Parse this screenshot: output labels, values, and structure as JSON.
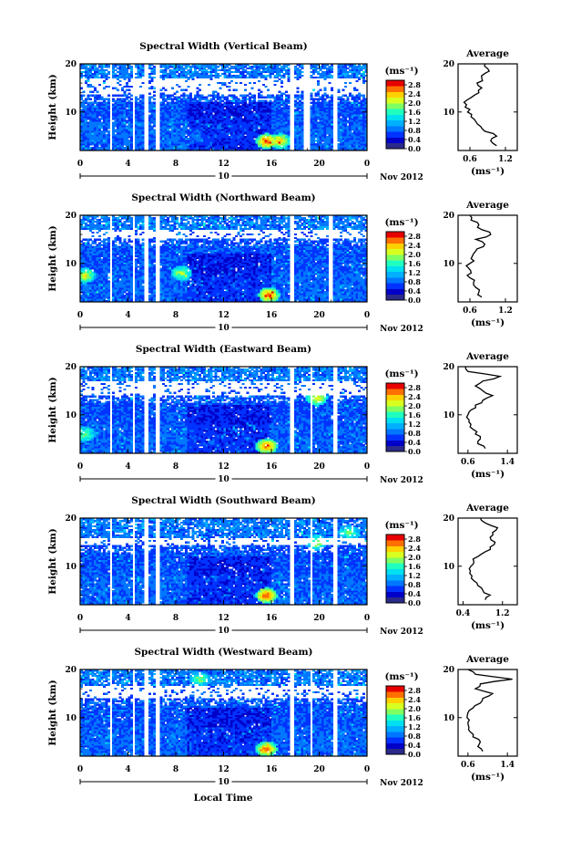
{
  "figure": {
    "xlabel": "Local Time",
    "date_label": "Nov 2012",
    "day_label": "10",
    "ylabel": "Height (km)",
    "units_label": "(ms⁻¹)",
    "avg_title": "Average",
    "avg_units": "(ms⁻¹)"
  },
  "colors": {
    "colormap": [
      "#2a2a8a",
      "#0000c8",
      "#0033ff",
      "#0077ff",
      "#00b0ff",
      "#00e0f0",
      "#20ffc0",
      "#80ff60",
      "#d8ff20",
      "#ffd000",
      "#ff7000",
      "#e80000"
    ],
    "background": "#ffffff"
  },
  "chart_data": [
    {
      "type": "heatmap",
      "title": "Spectral Width (Vertical Beam)",
      "x_ticks": [
        "0",
        "4",
        "8",
        "12",
        "16",
        "20",
        "0"
      ],
      "y_ticks": [
        "20",
        "10"
      ],
      "xlim": [
        0,
        24
      ],
      "ylim": [
        2,
        20
      ],
      "colorbar": {
        "label": "(ms⁻¹)",
        "ticks": [
          "2.8",
          "2.4",
          "2.0",
          "1.6",
          "1.2",
          "0.8",
          "0.4",
          "0.0"
        ],
        "range": [
          0,
          3.0
        ]
      },
      "data_gaps_hours": [
        [
          2.4,
          2.7
        ],
        [
          4.3,
          4.6
        ],
        [
          5.4,
          5.7
        ],
        [
          6.2,
          6.6
        ],
        [
          17.6,
          17.9
        ],
        [
          18.7,
          19.3
        ],
        [
          21.2,
          21.5
        ]
      ],
      "noise_band_km": [
        13.6,
        17.0
      ],
      "hotspots": [
        {
          "t": 15.6,
          "h": 4,
          "v": 2.7
        },
        {
          "t": 16.7,
          "h": 4,
          "v": 2.4
        },
        {
          "t": 9.6,
          "h": 5,
          "v": 0.9
        }
      ],
      "average": {
        "title": "Average",
        "xticks": [
          "0.6",
          "1.2"
        ],
        "xlim": [
          0.4,
          1.4
        ],
        "yticks": [
          "20",
          "10"
        ],
        "height": [
          3,
          4,
          5,
          6,
          7,
          8,
          9,
          10,
          11,
          12,
          13,
          14,
          15,
          16,
          17,
          18,
          19,
          20
        ],
        "width": [
          1.05,
          0.95,
          1.05,
          0.85,
          0.78,
          0.7,
          0.62,
          0.56,
          0.52,
          0.5,
          0.62,
          0.75,
          0.8,
          0.72,
          0.8,
          0.85,
          0.9,
          0.85
        ]
      }
    },
    {
      "type": "heatmap",
      "title": "Spectral Width (Northward Beam)",
      "x_ticks": [
        "0",
        "4",
        "8",
        "12",
        "16",
        "20",
        "0"
      ],
      "y_ticks": [
        "20",
        "10"
      ],
      "xlim": [
        0,
        24
      ],
      "ylim": [
        2,
        20
      ],
      "colorbar": {
        "label": "(ms⁻¹)",
        "ticks": [
          "2.8",
          "2.4",
          "2.0",
          "1.6",
          "1.2",
          "0.8",
          "0.4",
          "0.0"
        ],
        "range": [
          0,
          3.0
        ]
      },
      "data_gaps_hours": [
        [
          2.4,
          2.7
        ],
        [
          4.3,
          4.6
        ],
        [
          5.4,
          5.7
        ],
        [
          6.2,
          6.6
        ],
        [
          17.6,
          17.9
        ],
        [
          20.8,
          21.1
        ]
      ],
      "noise_band_km": [
        15.3,
        17.0
      ],
      "hotspots": [
        {
          "t": 15.8,
          "h": 3.5,
          "v": 2.7
        },
        {
          "t": 0.4,
          "h": 7.5,
          "v": 2.2
        },
        {
          "t": 8.5,
          "h": 8,
          "v": 2.0
        }
      ],
      "average": {
        "title": "Average",
        "xticks": [
          "0.6",
          "1.2"
        ],
        "xlim": [
          0.4,
          1.4
        ],
        "yticks": [
          "20",
          "10"
        ],
        "height": [
          3,
          4,
          5,
          6,
          7,
          8,
          9,
          10,
          11,
          12,
          13,
          14,
          15,
          16,
          17,
          18,
          19,
          20
        ],
        "width": [
          0.8,
          0.75,
          0.7,
          0.66,
          0.6,
          0.62,
          0.58,
          0.6,
          0.62,
          0.66,
          0.72,
          0.85,
          0.7,
          0.95,
          0.8,
          0.75,
          0.62,
          0.6
        ]
      }
    },
    {
      "type": "heatmap",
      "title": "Spectral Width (Eastward Beam)",
      "x_ticks": [
        "0",
        "4",
        "8",
        "12",
        "16",
        "20",
        "0"
      ],
      "y_ticks": [
        "20",
        "10"
      ],
      "xlim": [
        0,
        24
      ],
      "ylim": [
        2,
        20
      ],
      "colorbar": {
        "label": "(ms⁻¹)",
        "ticks": [
          "2.8",
          "2.4",
          "2.0",
          "1.6",
          "1.2",
          "0.8",
          "0.4",
          "0.0"
        ],
        "range": [
          0,
          3.0
        ]
      },
      "data_gaps_hours": [
        [
          2.4,
          2.7
        ],
        [
          4.3,
          4.6
        ],
        [
          5.4,
          5.7
        ],
        [
          6.2,
          6.6
        ],
        [
          17.6,
          17.9
        ],
        [
          19.2,
          19.5
        ],
        [
          21.2,
          21.5
        ]
      ],
      "noise_band_km": [
        14.0,
        17.0
      ],
      "hotspots": [
        {
          "t": 15.6,
          "h": 3.5,
          "v": 2.7
        },
        {
          "t": 19.8,
          "h": 13.5,
          "v": 2.2
        },
        {
          "t": 0.4,
          "h": 6,
          "v": 1.8
        }
      ],
      "average": {
        "title": "Average",
        "xticks": [
          "0.6",
          "1.4"
        ],
        "xlim": [
          0.4,
          1.6
        ],
        "yticks": [
          "20",
          "10"
        ],
        "height": [
          3,
          4,
          5,
          6,
          7,
          8,
          9,
          10,
          11,
          12,
          13,
          14,
          15,
          16,
          17,
          18,
          19,
          20
        ],
        "width": [
          0.95,
          0.8,
          0.85,
          0.75,
          0.7,
          0.66,
          0.62,
          0.6,
          0.66,
          0.75,
          0.9,
          1.1,
          0.9,
          0.75,
          0.9,
          1.25,
          0.6,
          0.55
        ]
      }
    },
    {
      "type": "heatmap",
      "title": "Spectral Width (Southward Beam)",
      "x_ticks": [
        "0",
        "4",
        "8",
        "12",
        "16",
        "20",
        "0"
      ],
      "y_ticks": [
        "20",
        "10"
      ],
      "xlim": [
        0,
        24
      ],
      "ylim": [
        2,
        20
      ],
      "colorbar": {
        "label": "(ms⁻¹)",
        "ticks": [
          "2.8",
          "2.4",
          "2.0",
          "1.6",
          "1.2",
          "0.8",
          "0.4",
          "0.0"
        ],
        "range": [
          0,
          3.0
        ]
      },
      "data_gaps_hours": [
        [
          2.4,
          2.7
        ],
        [
          4.3,
          4.6
        ],
        [
          5.4,
          5.7
        ],
        [
          6.2,
          6.6
        ],
        [
          17.6,
          17.9
        ],
        [
          19.2,
          19.5
        ],
        [
          21.2,
          21.5
        ]
      ],
      "noise_band_km": [
        14.5,
        16.0
      ],
      "hotspots": [
        {
          "t": 15.6,
          "h": 4,
          "v": 2.8
        },
        {
          "t": 19.8,
          "h": 15,
          "v": 2.0
        },
        {
          "t": 22.5,
          "h": 17,
          "v": 1.8
        }
      ],
      "average": {
        "title": "Average",
        "xticks": [
          "0.4",
          "1.2"
        ],
        "xlim": [
          0.3,
          1.5
        ],
        "yticks": [
          "20",
          "10"
        ],
        "height": [
          3,
          4,
          5,
          6,
          7,
          8,
          9,
          10,
          11,
          12,
          13,
          14,
          15,
          16,
          17,
          18,
          19,
          20
        ],
        "width": [
          0.85,
          0.95,
          0.8,
          0.7,
          0.62,
          0.58,
          0.55,
          0.56,
          0.62,
          0.7,
          0.85,
          0.95,
          1.05,
          0.95,
          1.0,
          1.1,
          0.85,
          0.75
        ]
      }
    },
    {
      "type": "heatmap",
      "title": "Spectral Width (Westward Beam)",
      "x_ticks": [
        "0",
        "4",
        "8",
        "12",
        "16",
        "20",
        "0"
      ],
      "y_ticks": [
        "20",
        "10"
      ],
      "xlim": [
        0,
        24
      ],
      "ylim": [
        2,
        20
      ],
      "colorbar": {
        "label": "(ms⁻¹)",
        "ticks": [
          "2.8",
          "2.4",
          "2.0",
          "1.6",
          "1.2",
          "0.8",
          "0.4",
          "0.0"
        ],
        "range": [
          0,
          3.0
        ]
      },
      "data_gaps_hours": [
        [
          2.4,
          2.7
        ],
        [
          4.3,
          4.6
        ],
        [
          5.4,
          5.7
        ],
        [
          6.2,
          6.6
        ],
        [
          17.6,
          17.9
        ],
        [
          19.2,
          19.5
        ],
        [
          21.2,
          21.5
        ]
      ],
      "noise_band_km": [
        14.0,
        16.5
      ],
      "hotspots": [
        {
          "t": 15.6,
          "h": 3.5,
          "v": 2.7
        },
        {
          "t": 10,
          "h": 18,
          "v": 1.8
        }
      ],
      "average": {
        "title": "Average",
        "xticks": [
          "0.6",
          "1.4"
        ],
        "xlim": [
          0.4,
          1.6
        ],
        "yticks": [
          "20",
          "10"
        ],
        "height": [
          3,
          4,
          5,
          6,
          7,
          8,
          9,
          10,
          11,
          12,
          13,
          14,
          15,
          16,
          17,
          18,
          19,
          20
        ],
        "width": [
          0.9,
          0.8,
          0.85,
          0.7,
          0.65,
          0.62,
          0.6,
          0.58,
          0.6,
          0.7,
          0.85,
          0.9,
          1.1,
          0.75,
          0.85,
          1.5,
          0.75,
          0.6
        ]
      }
    }
  ]
}
